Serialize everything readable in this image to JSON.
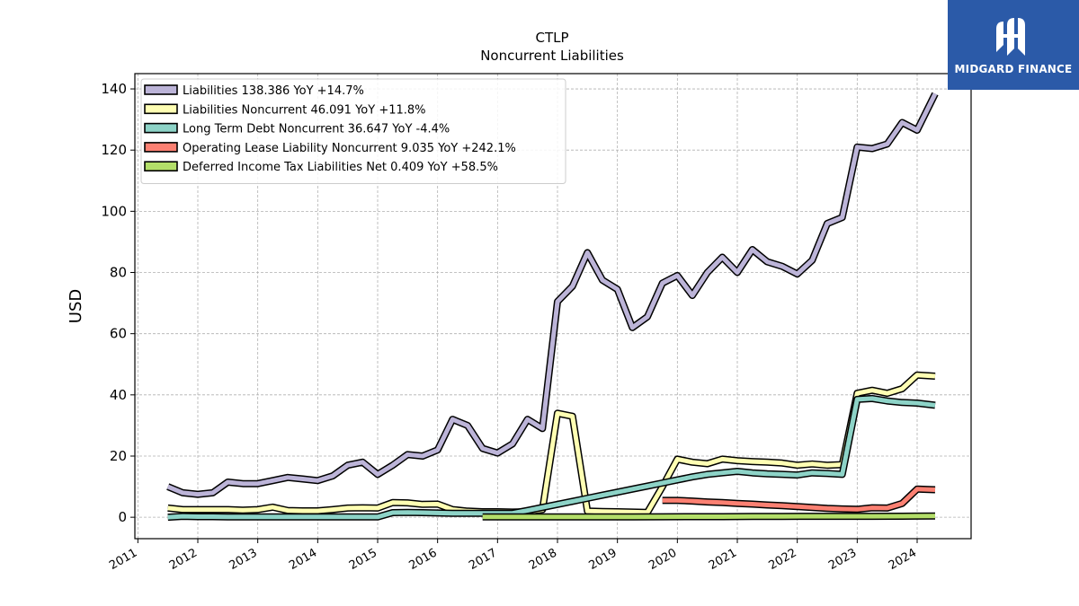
{
  "chart_data": {
    "type": "line",
    "title": "CTLP",
    "subtitle": "Noncurrent  Liabilities",
    "ylabel": "USD",
    "xlabel": "",
    "ylim": [
      -7,
      145
    ],
    "xlim": [
      2010.95,
      2024.9
    ],
    "yticks": [
      0,
      20,
      40,
      60,
      80,
      100,
      120,
      140
    ],
    "xticks": [
      "2011",
      "2012",
      "2013",
      "2014",
      "2015",
      "2016",
      "2017",
      "2018",
      "2019",
      "2020",
      "2021",
      "2022",
      "2023",
      "2024"
    ],
    "grid": true,
    "legend_position": "top-left",
    "series": [
      {
        "name": "Liabilities",
        "legend": "Liabilities  138.386 YoY +14.7%",
        "color": "#bcb4d8",
        "x": [
          2011.5,
          2011.75,
          2012.0,
          2012.25,
          2012.5,
          2012.75,
          2013.0,
          2013.25,
          2013.5,
          2013.75,
          2014.0,
          2014.25,
          2014.5,
          2014.75,
          2015.0,
          2015.25,
          2015.5,
          2015.75,
          2016.0,
          2016.25,
          2016.5,
          2016.75,
          2017.0,
          2017.25,
          2017.5,
          2017.75,
          2018.0,
          2018.25,
          2018.5,
          2018.75,
          2019.0,
          2019.25,
          2019.5,
          2019.75,
          2020.0,
          2020.25,
          2020.5,
          2020.75,
          2021.0,
          2021.25,
          2021.5,
          2021.75,
          2022.0,
          2022.25,
          2022.5,
          2022.75,
          2023.0,
          2023.25,
          2023.5,
          2023.75,
          2024.0,
          2024.3
        ],
        "values": [
          10,
          8,
          7.5,
          8,
          11.5,
          11,
          11,
          12,
          13,
          12.5,
          12,
          13.5,
          17,
          18,
          14,
          17,
          20.5,
          20,
          22,
          32,
          30,
          22.5,
          21,
          24,
          32,
          29,
          70.5,
          75.5,
          86.5,
          77.5,
          74.5,
          62,
          65.5,
          76.5,
          79,
          72.5,
          80,
          85,
          80,
          87.5,
          83.5,
          82,
          79.5,
          84,
          96,
          98,
          121,
          120.5,
          122,
          129,
          126.5,
          138.4
        ]
      },
      {
        "name": "Liabilities Noncurrent",
        "legend": "Liabilities Noncurrent  46.091 YoY +11.8%",
        "color": "#ffffb3",
        "x": [
          2011.5,
          2011.75,
          2012.0,
          2012.25,
          2012.5,
          2012.75,
          2013.0,
          2013.25,
          2013.5,
          2013.75,
          2014.0,
          2014.25,
          2014.5,
          2014.75,
          2015.0,
          2015.25,
          2015.5,
          2015.75,
          2016.0,
          2016.25,
          2016.5,
          2016.75,
          2017.0,
          2017.25,
          2017.5,
          2017.75,
          2018.0,
          2018.25,
          2018.5,
          2018.75,
          2019.0,
          2019.25,
          2019.5,
          2019.75,
          2020.0,
          2020.25,
          2020.5,
          2020.75,
          2021.0,
          2021.25,
          2021.5,
          2021.75,
          2022.0,
          2022.25,
          2022.5,
          2022.75,
          2023.0,
          2023.25,
          2023.5,
          2023.75,
          2024.0,
          2024.3
        ],
        "values": [
          3,
          2.5,
          2.5,
          2.5,
          2.5,
          2.3,
          2.5,
          3.3,
          2.2,
          2.1,
          2.1,
          2.5,
          3,
          3.1,
          3,
          4.8,
          4.7,
          4.2,
          4.3,
          2.5,
          2,
          1.8,
          1.8,
          1.7,
          1.8,
          2.5,
          34,
          33,
          2,
          1.9,
          1.8,
          1.7,
          1.6,
          10,
          19,
          18,
          17.5,
          19,
          18.5,
          18.2,
          18,
          17.7,
          17,
          17.4,
          17,
          17.2,
          40.5,
          41.5,
          40.5,
          42,
          46.5,
          46.1
        ]
      },
      {
        "name": "Long Term Debt Noncurrent",
        "legend": "Long Term Debt Noncurrent  36.647 YoY -4.4%",
        "color": "#8dd3c7",
        "x": [
          2011.5,
          2011.75,
          2012.0,
          2012.25,
          2012.5,
          2012.75,
          2013.0,
          2013.25,
          2013.5,
          2013.75,
          2014.0,
          2014.25,
          2014.5,
          2014.75,
          2015.0,
          2015.25,
          2015.5,
          2015.75,
          2016.0,
          2016.25,
          2016.5,
          2016.75,
          2017.0,
          2017.25,
          2017.5,
          2017.75,
          2018.0,
          2018.25,
          2018.5,
          2018.75,
          2019.0,
          2019.25,
          2019.5,
          2019.75,
          2020.0,
          2020.25,
          2020.5,
          2020.75,
          2021.0,
          2021.25,
          2021.5,
          2021.75,
          2022.0,
          2022.25,
          2022.5,
          2022.75,
          2023.0,
          2023.25,
          2023.5,
          2023.75,
          2024.0,
          2024.3
        ],
        "values": [
          0,
          0.3,
          0.2,
          0.2,
          0.1,
          0.1,
          0.1,
          0.1,
          0.1,
          0.1,
          0.1,
          0.1,
          0.1,
          0.1,
          0.1,
          1.5,
          1.6,
          1.5,
          1.4,
          1.3,
          1.3,
          1.3,
          1.3,
          1.3,
          2.2,
          3.2,
          4.2,
          5.2,
          6.2,
          7.2,
          8.2,
          9.2,
          10.2,
          11.2,
          12.2,
          13.2,
          14,
          14.5,
          15,
          14.5,
          14.2,
          14,
          13.8,
          14.5,
          14.3,
          14,
          38.5,
          38.8,
          38,
          37.5,
          37.3,
          36.6
        ]
      },
      {
        "name": "Operating Lease Liability Noncurrent",
        "legend": "Operating Lease Liability Noncurrent  9.035 YoY +242.1%",
        "color": "#fb8072",
        "x": [
          2019.75,
          2020.0,
          2020.25,
          2020.5,
          2020.75,
          2021.0,
          2021.25,
          2021.5,
          2021.75,
          2022.0,
          2022.25,
          2022.5,
          2022.75,
          2023.0,
          2023.25,
          2023.5,
          2023.75,
          2024.0,
          2024.3
        ],
        "values": [
          5.5,
          5.5,
          5.3,
          5,
          4.8,
          4.5,
          4.3,
          4,
          3.8,
          3.5,
          3.2,
          2.9,
          2.7,
          2.6,
          3.1,
          3,
          4.5,
          9.2,
          9.0
        ]
      },
      {
        "name": "Deferred Income Tax Liabilities Net",
        "legend": "Deferred Income Tax Liabilities Net  0.409 YoY +58.5%",
        "color": "#b3de69",
        "x": [
          2016.75,
          2017.25,
          2017.75,
          2018.25,
          2018.75,
          2019.25,
          2019.75,
          2020.25,
          2020.75,
          2021.25,
          2021.75,
          2022.25,
          2022.75,
          2023.25,
          2023.75,
          2024.3
        ],
        "values": [
          0.1,
          0.1,
          0.1,
          0.1,
          0.1,
          0.1,
          0.15,
          0.2,
          0.2,
          0.25,
          0.25,
          0.3,
          0.3,
          0.3,
          0.35,
          0.4
        ]
      }
    ]
  },
  "logo": {
    "text": "MIDGARD FINANCE",
    "background": "#2b5aa8"
  }
}
